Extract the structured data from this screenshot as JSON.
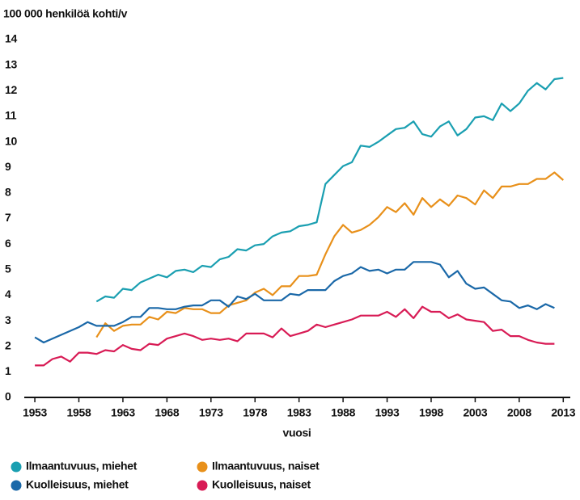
{
  "chart_data": {
    "type": "line",
    "title": "100 000 henkilöä kohti/v",
    "xlabel": "vuosi",
    "x": [
      1953,
      1954,
      1955,
      1956,
      1957,
      1958,
      1959,
      1960,
      1961,
      1962,
      1963,
      1964,
      1965,
      1966,
      1967,
      1968,
      1969,
      1970,
      1971,
      1972,
      1973,
      1974,
      1975,
      1976,
      1977,
      1978,
      1979,
      1980,
      1981,
      1982,
      1983,
      1984,
      1985,
      1986,
      1987,
      1988,
      1989,
      1990,
      1991,
      1992,
      1993,
      1994,
      1995,
      1996,
      1997,
      1998,
      1999,
      2000,
      2001,
      2002,
      2003,
      2004,
      2005,
      2006,
      2007,
      2008,
      2009,
      2010,
      2011,
      2012,
      2013
    ],
    "series": [
      {
        "name": "Ilmaantuvuus, miehet",
        "color": "#1a9fb1",
        "values": [
          null,
          null,
          null,
          null,
          null,
          null,
          null,
          3.75,
          3.95,
          3.9,
          4.25,
          4.2,
          4.5,
          4.65,
          4.8,
          4.7,
          4.95,
          5.0,
          4.9,
          5.15,
          5.1,
          5.4,
          5.5,
          5.8,
          5.75,
          5.95,
          6.0,
          6.3,
          6.45,
          6.5,
          6.7,
          6.75,
          6.85,
          8.35,
          8.7,
          9.05,
          9.2,
          9.85,
          9.8,
          10.0,
          10.25,
          10.5,
          10.55,
          10.8,
          10.3,
          10.2,
          10.6,
          10.8,
          10.25,
          10.5,
          10.95,
          11.0,
          10.85,
          11.5,
          11.2,
          11.5,
          12.0,
          12.3,
          12.05,
          12.45,
          12.5
        ]
      },
      {
        "name": "Ilmaantuvuus, naiset",
        "color": "#e8901a",
        "values": [
          null,
          null,
          null,
          null,
          null,
          null,
          null,
          2.35,
          2.9,
          2.6,
          2.8,
          2.85,
          2.85,
          3.15,
          3.05,
          3.35,
          3.3,
          3.5,
          3.45,
          3.45,
          3.3,
          3.3,
          3.6,
          3.7,
          3.8,
          4.1,
          4.25,
          4.0,
          4.35,
          4.35,
          4.75,
          4.75,
          4.8,
          5.6,
          6.3,
          6.75,
          6.45,
          6.55,
          6.75,
          7.05,
          7.45,
          7.25,
          7.6,
          7.15,
          7.8,
          7.45,
          7.75,
          7.5,
          7.9,
          7.8,
          7.55,
          8.1,
          7.8,
          8.25,
          8.25,
          8.35,
          8.35,
          8.55,
          8.55,
          8.8,
          8.5
        ]
      },
      {
        "name": "Kuolleisuus, miehet",
        "color": "#1a68a8",
        "values": [
          2.35,
          2.15,
          2.3,
          2.45,
          2.6,
          2.75,
          2.95,
          2.8,
          2.8,
          2.8,
          2.95,
          3.15,
          3.15,
          3.5,
          3.5,
          3.45,
          3.45,
          3.55,
          3.6,
          3.6,
          3.8,
          3.8,
          3.55,
          3.95,
          3.85,
          4.05,
          3.8,
          3.8,
          3.8,
          4.05,
          4.0,
          4.2,
          4.2,
          4.2,
          4.55,
          4.75,
          4.85,
          5.1,
          4.95,
          5.0,
          4.85,
          5.0,
          5.0,
          5.3,
          5.3,
          5.3,
          5.2,
          4.7,
          4.95,
          4.45,
          4.25,
          4.3,
          4.05,
          3.8,
          3.75,
          3.5,
          3.6,
          3.45,
          3.65,
          3.5,
          null
        ]
      },
      {
        "name": "Kuolleisuus, naiset",
        "color": "#d81b55",
        "values": [
          1.25,
          1.25,
          1.5,
          1.6,
          1.4,
          1.75,
          1.75,
          1.7,
          1.85,
          1.8,
          2.05,
          1.9,
          1.85,
          2.1,
          2.05,
          2.3,
          2.4,
          2.5,
          2.4,
          2.25,
          2.3,
          2.25,
          2.3,
          2.2,
          2.5,
          2.5,
          2.5,
          2.35,
          2.7,
          2.4,
          2.5,
          2.6,
          2.85,
          2.75,
          2.85,
          2.95,
          3.05,
          3.2,
          3.2,
          3.2,
          3.35,
          3.15,
          3.45,
          3.1,
          3.55,
          3.35,
          3.35,
          3.1,
          3.25,
          3.05,
          3.0,
          2.95,
          2.6,
          2.65,
          2.4,
          2.4,
          2.25,
          2.15,
          2.1,
          2.1,
          null
        ]
      }
    ],
    "xlim": [
      1951.8,
      2013.8
    ],
    "xticks": [
      1953,
      1958,
      1963,
      1968,
      1973,
      1978,
      1983,
      1988,
      1993,
      1998,
      2003,
      2008,
      2013
    ],
    "ylim": [
      0,
      14
    ],
    "yticks": [
      0,
      1,
      2,
      3,
      4,
      5,
      6,
      7,
      8,
      9,
      10,
      11,
      12,
      13,
      14
    ],
    "grid": false
  }
}
